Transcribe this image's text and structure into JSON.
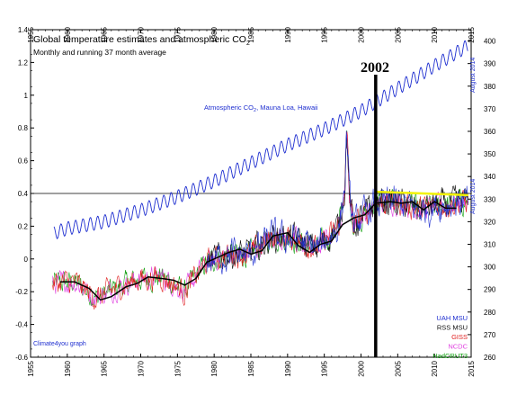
{
  "chart_data": {
    "type": "line",
    "title": "Global temperature estimates and atmospheric CO",
    "title_sub": "2",
    "subtitle": "Monthly and running 37 month average",
    "source_note": "Climate4you graph",
    "x_range": [
      1955,
      2015
    ],
    "x_ticks": [
      "1955",
      "1960",
      "1965",
      "1970",
      "1975",
      "1980",
      "1985",
      "1990",
      "1995",
      "2000",
      "2005",
      "2010",
      "2015"
    ],
    "y_left_range": [
      -0.6,
      1.4
    ],
    "y_left_ticks": [
      "1.4",
      "1.2",
      "1",
      "0.8",
      "0.6",
      "0.4",
      "0.2",
      "0",
      "-0.2",
      "-0.4",
      "-0.6"
    ],
    "y_right_range": [
      260,
      405
    ],
    "y_right_ticks": [
      "400",
      "390",
      "380",
      "370",
      "360",
      "350",
      "340",
      "330",
      "320",
      "310",
      "300",
      "290",
      "280",
      "270",
      "260"
    ],
    "reference_line_y": 0.4,
    "marker": {
      "x": 2002,
      "label": "2002"
    },
    "co2_label": "Atmospheric CO",
    "co2_label_sub": "2",
    "co2_label_rest": ", Mauna Loa, Hawaii",
    "co2_end_label": "August 2014",
    "temp_end_label": "August 2014",
    "colors": {
      "co2": "#1f2fd0",
      "uah": "#1f2fd0",
      "rss": "#111111",
      "giss": "#e02020",
      "ncdc": "#e040e0",
      "hadcrut": "#10a010",
      "avg": "#000000",
      "plateau": "#f2f200"
    },
    "legend_position": "bottom-right",
    "legend": [
      {
        "name": "UAH MSU",
        "color": "#1f2fd0"
      },
      {
        "name": "RSS MSU",
        "color": "#111111"
      },
      {
        "name": "GISS",
        "color": "#e02020"
      },
      {
        "name": "NCDC",
        "color": "#e040e0"
      },
      {
        "name": "HadCRUT3",
        "color": "#10a010"
      }
    ],
    "co2_series": {
      "name": "Atmospheric CO2, Mauna Loa, Hawaii",
      "axis": "right",
      "x": [
        1958.2,
        1960,
        1965,
        1970,
        1975,
        1980,
        1985,
        1990,
        1995,
        2000,
        2005,
        2010,
        2014.6
      ],
      "y": [
        315,
        317,
        320,
        325,
        331,
        338,
        346,
        354,
        361,
        369,
        379,
        389,
        398
      ],
      "seasonal_amplitude": 3
    },
    "running_average": {
      "name": "37 month average",
      "axis": "left",
      "x": [
        1959,
        1961,
        1963,
        1964.5,
        1966,
        1968,
        1969.5,
        1971,
        1973,
        1974.5,
        1976,
        1977.5,
        1979,
        1980.5,
        1982,
        1983.5,
        1985,
        1986.5,
        1988,
        1990,
        1991.5,
        1993,
        1994.5,
        1996,
        1997.5,
        1999,
        2000.5,
        2002,
        2004,
        2005.5,
        2007,
        2008.5,
        2010,
        2011.5,
        2013
      ],
      "y": [
        -0.14,
        -0.14,
        -0.18,
        -0.25,
        -0.23,
        -0.17,
        -0.15,
        -0.11,
        -0.12,
        -0.13,
        -0.16,
        -0.12,
        -0.02,
        0.01,
        0.04,
        0.06,
        0.03,
        0.05,
        0.14,
        0.16,
        0.08,
        0.04,
        0.09,
        0.11,
        0.21,
        0.25,
        0.27,
        0.34,
        0.35,
        0.34,
        0.35,
        0.3,
        0.35,
        0.31,
        0.31
      ]
    },
    "plateau": {
      "x": [
        2002,
        2014.6
      ],
      "y": [
        0.41,
        0.39
      ]
    },
    "temperature_series_envelope": {
      "x": [
        1958,
        1961,
        1964,
        1967,
        1970,
        1973,
        1976,
        1979,
        1982,
        1985,
        1988,
        1991,
        1994,
        1997,
        1998,
        1999,
        2002,
        2005,
        2008,
        2011,
        2014.6
      ],
      "y": [
        -0.15,
        -0.14,
        -0.24,
        -0.17,
        -0.12,
        -0.11,
        -0.2,
        -0.02,
        0.03,
        0.03,
        0.14,
        0.12,
        0.06,
        0.2,
        0.5,
        0.2,
        0.34,
        0.35,
        0.3,
        0.33,
        0.35
      ],
      "noise": 0.13
    }
  }
}
